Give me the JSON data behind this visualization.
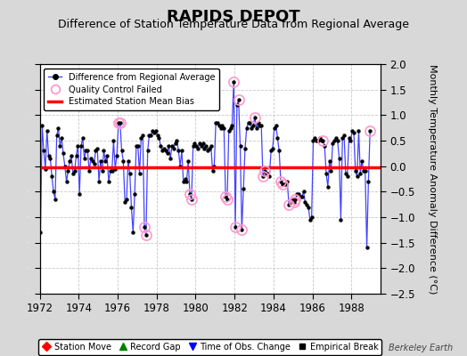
{
  "title": "RAPIDS DEPOT",
  "subtitle": "Difference of Station Temperature Data from Regional Average",
  "ylabel": "Monthly Temperature Anomaly Difference (°C)",
  "xlim": [
    1972,
    1989.5
  ],
  "ylim": [
    -2.5,
    2.0
  ],
  "yticks": [
    -2.5,
    -2.0,
    -1.5,
    -1.0,
    -0.5,
    0.0,
    0.5,
    1.0,
    1.5,
    2.0
  ],
  "xticks": [
    1972,
    1974,
    1976,
    1978,
    1980,
    1982,
    1984,
    1986,
    1988
  ],
  "bias_line_y": -0.02,
  "line_color": "#4444ff",
  "line_color_fill": "#aaaaff",
  "dot_color": "#000000",
  "bias_color": "#ff0000",
  "qc_color": "#ff99cc",
  "background_color": "#d8d8d8",
  "plot_bg_color": "#ffffff",
  "time_series": [
    [
      1972.042,
      -1.3
    ],
    [
      1972.125,
      0.8
    ],
    [
      1972.208,
      0.3
    ],
    [
      1972.292,
      -0.05
    ],
    [
      1972.375,
      0.7
    ],
    [
      1972.458,
      0.2
    ],
    [
      1972.542,
      0.15
    ],
    [
      1972.625,
      -0.2
    ],
    [
      1972.708,
      -0.5
    ],
    [
      1972.792,
      -0.65
    ],
    [
      1972.875,
      0.6
    ],
    [
      1972.958,
      0.75
    ],
    [
      1973.042,
      0.4
    ],
    [
      1973.125,
      0.55
    ],
    [
      1973.208,
      0.25
    ],
    [
      1973.292,
      0.0
    ],
    [
      1973.375,
      -0.3
    ],
    [
      1973.458,
      -0.1
    ],
    [
      1973.542,
      0.1
    ],
    [
      1973.625,
      0.2
    ],
    [
      1973.708,
      -0.15
    ],
    [
      1973.792,
      -0.1
    ],
    [
      1973.875,
      0.2
    ],
    [
      1973.958,
      0.4
    ],
    [
      1974.042,
      -0.55
    ],
    [
      1974.125,
      0.4
    ],
    [
      1974.208,
      0.55
    ],
    [
      1974.292,
      0.15
    ],
    [
      1974.375,
      0.3
    ],
    [
      1974.458,
      0.3
    ],
    [
      1974.542,
      -0.1
    ],
    [
      1974.625,
      0.15
    ],
    [
      1974.708,
      0.1
    ],
    [
      1974.792,
      0.05
    ],
    [
      1974.875,
      0.3
    ],
    [
      1974.958,
      0.35
    ],
    [
      1975.042,
      -0.3
    ],
    [
      1975.125,
      0.1
    ],
    [
      1975.208,
      -0.1
    ],
    [
      1975.292,
      0.3
    ],
    [
      1975.375,
      0.1
    ],
    [
      1975.458,
      0.2
    ],
    [
      1975.542,
      -0.3
    ],
    [
      1975.625,
      -0.1
    ],
    [
      1975.708,
      -0.1
    ],
    [
      1975.792,
      0.5
    ],
    [
      1975.875,
      -0.05
    ],
    [
      1975.958,
      0.2
    ],
    [
      1976.042,
      0.85
    ],
    [
      1976.125,
      0.85
    ],
    [
      1976.208,
      0.3
    ],
    [
      1976.292,
      0.1
    ],
    [
      1976.375,
      -0.7
    ],
    [
      1976.458,
      -0.65
    ],
    [
      1976.542,
      0.1
    ],
    [
      1976.625,
      -0.15
    ],
    [
      1976.708,
      -0.8
    ],
    [
      1976.792,
      -1.3
    ],
    [
      1976.875,
      -0.55
    ],
    [
      1976.958,
      0.4
    ],
    [
      1977.042,
      0.4
    ],
    [
      1977.125,
      -0.15
    ],
    [
      1977.208,
      0.55
    ],
    [
      1977.292,
      0.6
    ],
    [
      1977.375,
      -1.2
    ],
    [
      1977.458,
      -1.35
    ],
    [
      1977.542,
      0.3
    ],
    [
      1977.625,
      0.6
    ],
    [
      1977.708,
      0.6
    ],
    [
      1977.792,
      0.7
    ],
    [
      1977.875,
      0.65
    ],
    [
      1977.958,
      0.7
    ],
    [
      1978.042,
      0.6
    ],
    [
      1978.125,
      0.55
    ],
    [
      1978.208,
      0.4
    ],
    [
      1978.292,
      0.3
    ],
    [
      1978.375,
      0.35
    ],
    [
      1978.458,
      0.3
    ],
    [
      1978.542,
      0.25
    ],
    [
      1978.625,
      0.4
    ],
    [
      1978.708,
      0.15
    ],
    [
      1978.792,
      0.4
    ],
    [
      1978.875,
      0.35
    ],
    [
      1978.958,
      0.45
    ],
    [
      1979.042,
      0.5
    ],
    [
      1979.125,
      0.3
    ],
    [
      1979.208,
      0.0
    ],
    [
      1979.292,
      0.3
    ],
    [
      1979.375,
      -0.3
    ],
    [
      1979.458,
      -0.25
    ],
    [
      1979.542,
      -0.3
    ],
    [
      1979.625,
      0.1
    ],
    [
      1979.708,
      -0.55
    ],
    [
      1979.792,
      -0.65
    ],
    [
      1979.875,
      0.4
    ],
    [
      1979.958,
      0.45
    ],
    [
      1980.042,
      0.4
    ],
    [
      1980.125,
      0.35
    ],
    [
      1980.208,
      0.45
    ],
    [
      1980.292,
      0.4
    ],
    [
      1980.375,
      0.45
    ],
    [
      1980.458,
      0.35
    ],
    [
      1980.542,
      0.4
    ],
    [
      1980.625,
      0.3
    ],
    [
      1980.708,
      0.35
    ],
    [
      1980.792,
      0.4
    ],
    [
      1980.875,
      -0.1
    ],
    [
      1980.958,
      0.0
    ],
    [
      1981.042,
      0.85
    ],
    [
      1981.125,
      0.85
    ],
    [
      1981.208,
      0.8
    ],
    [
      1981.292,
      0.75
    ],
    [
      1981.375,
      0.8
    ],
    [
      1981.458,
      0.75
    ],
    [
      1981.542,
      -0.6
    ],
    [
      1981.625,
      -0.65
    ],
    [
      1981.708,
      0.7
    ],
    [
      1981.792,
      0.75
    ],
    [
      1981.875,
      0.8
    ],
    [
      1981.958,
      1.65
    ],
    [
      1982.042,
      -1.2
    ],
    [
      1982.125,
      1.2
    ],
    [
      1982.208,
      1.3
    ],
    [
      1982.292,
      0.4
    ],
    [
      1982.375,
      -1.25
    ],
    [
      1982.458,
      -0.45
    ],
    [
      1982.542,
      0.35
    ],
    [
      1982.625,
      0.75
    ],
    [
      1982.708,
      0.85
    ],
    [
      1982.792,
      0.85
    ],
    [
      1982.875,
      0.75
    ],
    [
      1982.958,
      0.8
    ],
    [
      1983.042,
      0.95
    ],
    [
      1983.125,
      0.75
    ],
    [
      1983.208,
      0.85
    ],
    [
      1983.292,
      0.8
    ],
    [
      1983.375,
      0.8
    ],
    [
      1983.458,
      -0.2
    ],
    [
      1983.542,
      -0.1
    ],
    [
      1983.625,
      -0.15
    ],
    [
      1983.708,
      -0.15
    ],
    [
      1983.792,
      -0.2
    ],
    [
      1983.875,
      0.3
    ],
    [
      1983.958,
      0.35
    ],
    [
      1984.042,
      0.75
    ],
    [
      1984.125,
      0.8
    ],
    [
      1984.208,
      0.55
    ],
    [
      1984.292,
      0.3
    ],
    [
      1984.375,
      -0.3
    ],
    [
      1984.458,
      -0.35
    ],
    [
      1984.542,
      -0.35
    ],
    [
      1984.625,
      -0.35
    ],
    [
      1984.708,
      -0.3
    ],
    [
      1984.792,
      -0.75
    ],
    [
      1984.875,
      -0.7
    ],
    [
      1984.958,
      -0.65
    ],
    [
      1985.042,
      -0.7
    ],
    [
      1985.125,
      -0.65
    ],
    [
      1985.208,
      -0.55
    ],
    [
      1985.292,
      -0.55
    ],
    [
      1985.375,
      -0.6
    ],
    [
      1985.458,
      -0.6
    ],
    [
      1985.542,
      -0.5
    ],
    [
      1985.625,
      -0.7
    ],
    [
      1985.708,
      -0.75
    ],
    [
      1985.792,
      -0.8
    ],
    [
      1985.875,
      -1.05
    ],
    [
      1985.958,
      -1.0
    ],
    [
      1986.042,
      0.5
    ],
    [
      1986.125,
      0.55
    ],
    [
      1986.208,
      0.5
    ],
    [
      1986.292,
      0.5
    ],
    [
      1986.375,
      0.55
    ],
    [
      1986.458,
      0.5
    ],
    [
      1986.542,
      0.5
    ],
    [
      1986.625,
      0.4
    ],
    [
      1986.708,
      -0.15
    ],
    [
      1986.792,
      -0.4
    ],
    [
      1986.875,
      0.1
    ],
    [
      1986.958,
      -0.1
    ],
    [
      1987.042,
      0.45
    ],
    [
      1987.125,
      0.5
    ],
    [
      1987.208,
      0.55
    ],
    [
      1987.292,
      0.5
    ],
    [
      1987.375,
      0.15
    ],
    [
      1987.458,
      -1.05
    ],
    [
      1987.542,
      0.55
    ],
    [
      1987.625,
      0.6
    ],
    [
      1987.708,
      -0.15
    ],
    [
      1987.792,
      -0.2
    ],
    [
      1987.875,
      0.55
    ],
    [
      1987.958,
      0.5
    ],
    [
      1988.042,
      0.7
    ],
    [
      1988.125,
      0.65
    ],
    [
      1988.208,
      -0.1
    ],
    [
      1988.292,
      -0.2
    ],
    [
      1988.375,
      0.7
    ],
    [
      1988.458,
      -0.15
    ],
    [
      1988.542,
      0.1
    ],
    [
      1988.625,
      -0.1
    ],
    [
      1988.708,
      -0.1
    ],
    [
      1988.792,
      -1.6
    ],
    [
      1988.875,
      -0.3
    ],
    [
      1988.958,
      0.7
    ]
  ],
  "qc_failed_times": [
    1976.042,
    1976.125,
    1977.375,
    1977.458,
    1979.708,
    1979.792,
    1981.542,
    1981.625,
    1982.042,
    1982.375,
    1983.458,
    1983.542,
    1984.375,
    1984.458,
    1985.042,
    1985.125,
    1982.208,
    1981.958,
    1983.042,
    1984.792,
    1986.542,
    1988.958
  ],
  "legend1_labels": [
    "Difference from Regional Average",
    "Quality Control Failed",
    "Estimated Station Mean Bias"
  ],
  "legend2_labels": [
    "Station Move",
    "Record Gap",
    "Time of Obs. Change",
    "Empirical Break"
  ],
  "watermark": "Berkeley Earth",
  "grid_color": "#c8c8c8",
  "title_fontsize": 13,
  "subtitle_fontsize": 9,
  "ylabel_fontsize": 8,
  "tick_fontsize": 8.5
}
